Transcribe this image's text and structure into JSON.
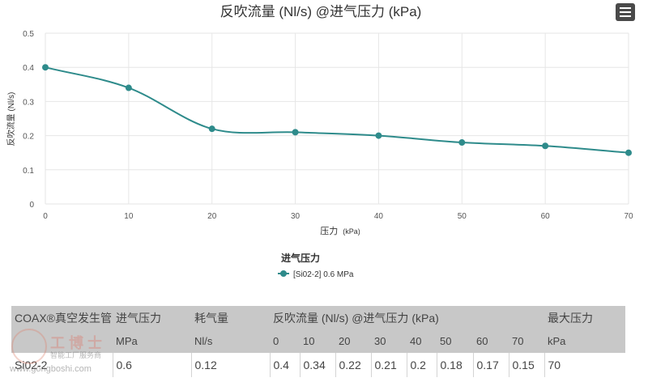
{
  "chart_data": {
    "type": "line",
    "title": "反吹流量 (Nl/s) @进气压力 (kPa)",
    "xlabel": "压力",
    "xlabel_unit": "(kPa)",
    "ylabel": "反吹流量 (Nl/s)",
    "x": [
      0,
      10,
      20,
      30,
      40,
      50,
      60,
      70
    ],
    "xlim": [
      0,
      70
    ],
    "ylim": [
      0,
      0.5
    ],
    "x_ticks": [
      "0",
      "10",
      "20",
      "30",
      "40",
      "50",
      "60",
      "70"
    ],
    "y_ticks": [
      "0",
      "0.1",
      "0.2",
      "0.3",
      "0.4",
      "0.5"
    ],
    "grid": true,
    "series": [
      {
        "name": "[Si02-2] 0.6 MPa",
        "values": [
          0.4,
          0.34,
          0.22,
          0.21,
          0.2,
          0.18,
          0.17,
          0.15
        ],
        "color": "#2e8b8b"
      }
    ],
    "legend": {
      "title": "进气压力",
      "placement": "bottom-center"
    }
  },
  "table": {
    "header_top": [
      "COAX®真空发生管",
      "进气压力",
      "耗气量",
      "反吹流量 (Nl/s) @进气压力 (kPa)",
      "最大压力"
    ],
    "header_bottom": [
      "",
      "MPa",
      "Nl/s",
      "0",
      "10",
      "20",
      "30",
      "40",
      "50",
      "60",
      "70",
      "kPa"
    ],
    "row": [
      "Si02-2",
      "0.6",
      "0.12",
      "0.4",
      "0.34",
      "0.22",
      "0.21",
      "0.2",
      "0.18",
      "0.17",
      "0.15",
      "70"
    ]
  },
  "watermark": {
    "line1": "工博士",
    "line2": "智能工厂服务商",
    "line3": "www.gongboshi.com"
  },
  "colors": {
    "series": "#2e8b8b",
    "grid": "#e6e6e6",
    "table_header_bg": "#c8c8c8",
    "menu_button": "#4a4a4a"
  },
  "icons": {
    "menu": "hamburger-menu-icon"
  }
}
